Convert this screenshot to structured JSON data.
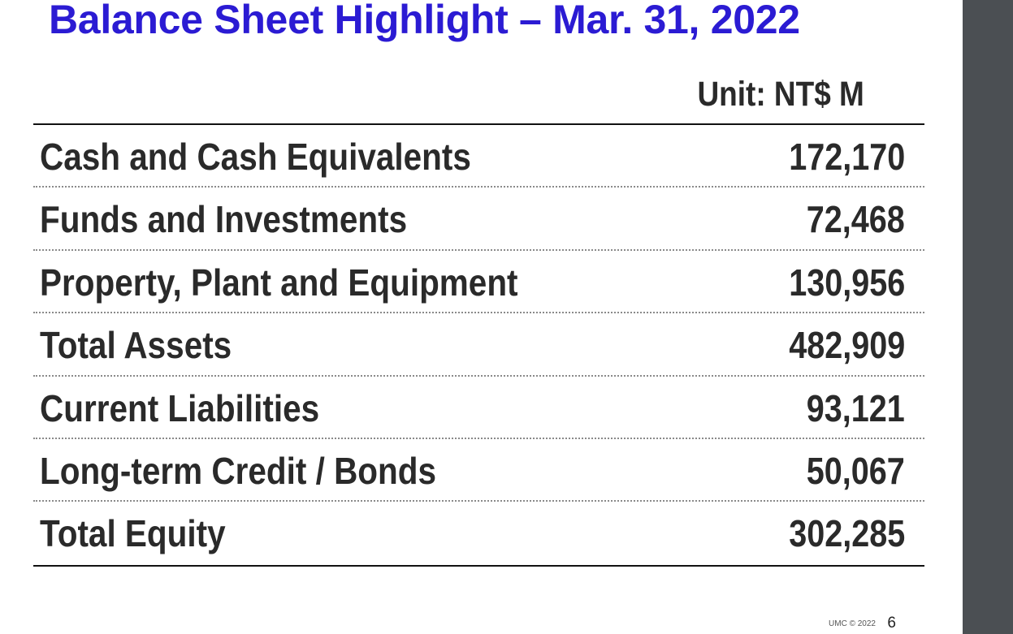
{
  "title": "Balance Sheet Highlight – Mar. 31, 2022",
  "unit": "Unit: NT$ M",
  "rows": [
    {
      "label": "Cash and Cash Equivalents",
      "value": "172,170"
    },
    {
      "label": "Funds and Investments",
      "value": "72,468"
    },
    {
      "label": "Property, Plant and Equipment",
      "value": "130,956"
    },
    {
      "label": "Total Assets",
      "value": "482,909"
    },
    {
      "label": "Current Liabilities",
      "value": "93,121"
    },
    {
      "label": "Long-term Credit / Bonds",
      "value": "50,067"
    },
    {
      "label": "Total Equity",
      "value": "302,285"
    }
  ],
  "footer": {
    "copyright": "UMC © 2022",
    "page_number": "6"
  },
  "colors": {
    "title": "#2b1bd3",
    "text": "#2a2a2a",
    "side_bar": "#4b4f53"
  }
}
